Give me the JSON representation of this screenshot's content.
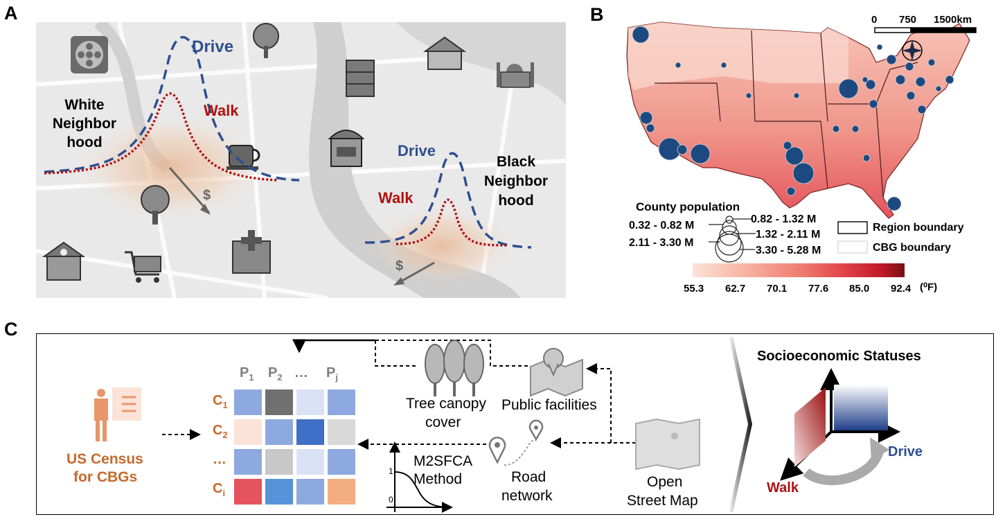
{
  "panel_a": {
    "letter": "A",
    "drive_label": "Drive",
    "walk_label": "Walk",
    "white_neighborhood": [
      "White",
      "Neighbor",
      "hood"
    ],
    "black_neighborhood": [
      "Black",
      "Neighbor",
      "hood"
    ],
    "dollar": "$",
    "colors": {
      "drive": "#2e4f8f",
      "walk": "#b01010"
    }
  },
  "panel_b": {
    "letter": "B",
    "scale_ticks": [
      "0",
      "750",
      "1500km"
    ],
    "legend_title": "County population",
    "population_bins": [
      "0.32 - 0.82 M",
      "0.82 - 1.32 M",
      "1.32 - 2.11 M",
      "2.11 - 3.30 M",
      "3.30 - 5.28 M"
    ],
    "region_boundary": "Region boundary",
    "cbg_boundary": "CBG boundary",
    "colorbar_ticks": [
      "55.3",
      "62.7",
      "70.1",
      "77.6",
      "85.0",
      "92.4"
    ],
    "colorbar_unit": "(⁰F)",
    "colorbar_colors": [
      "#fbe3d8",
      "#f7b3a2",
      "#ef7f73",
      "#e2474c",
      "#c41b2a",
      "#7a0f14"
    ],
    "point_color": "#1c4a80"
  },
  "panel_c": {
    "letter": "C",
    "census_label": [
      "US Census",
      "for CBGs"
    ],
    "col_headers": [
      "P",
      "P",
      "…",
      "P"
    ],
    "col_subs": [
      "1",
      "2",
      "",
      "j"
    ],
    "row_headers": [
      "C",
      "C",
      "…",
      "C"
    ],
    "row_subs": [
      "1",
      "2",
      "",
      "i"
    ],
    "matrix_colors": [
      [
        "#8ea9df",
        "#707070",
        "#d9e2f4",
        "#8ea9df"
      ],
      [
        "#fbe3d8",
        "#8ea9df",
        "#3f6fc6",
        "#d9d9d9"
      ],
      [
        "#8ea9df",
        "#c8c8c8",
        "#d9e2f4",
        "#8ea9df"
      ],
      [
        "#e4535e",
        "#5793d8",
        "#8ea9df",
        "#f2ad80"
      ]
    ],
    "tree_label": [
      "Tree canopy",
      "cover"
    ],
    "public_label": "Public facilities",
    "m2sfca_label": [
      "M2SFCA",
      "Method"
    ],
    "axis_one": "1",
    "axis_zero": "0",
    "road_label": [
      "Road",
      "network"
    ],
    "osm_label": [
      "Open",
      "Street Map"
    ],
    "ses_title": "Socioeconomic Statuses",
    "drive_label": "Drive",
    "walk_label": "Walk",
    "census_color": "#c56a2c"
  }
}
